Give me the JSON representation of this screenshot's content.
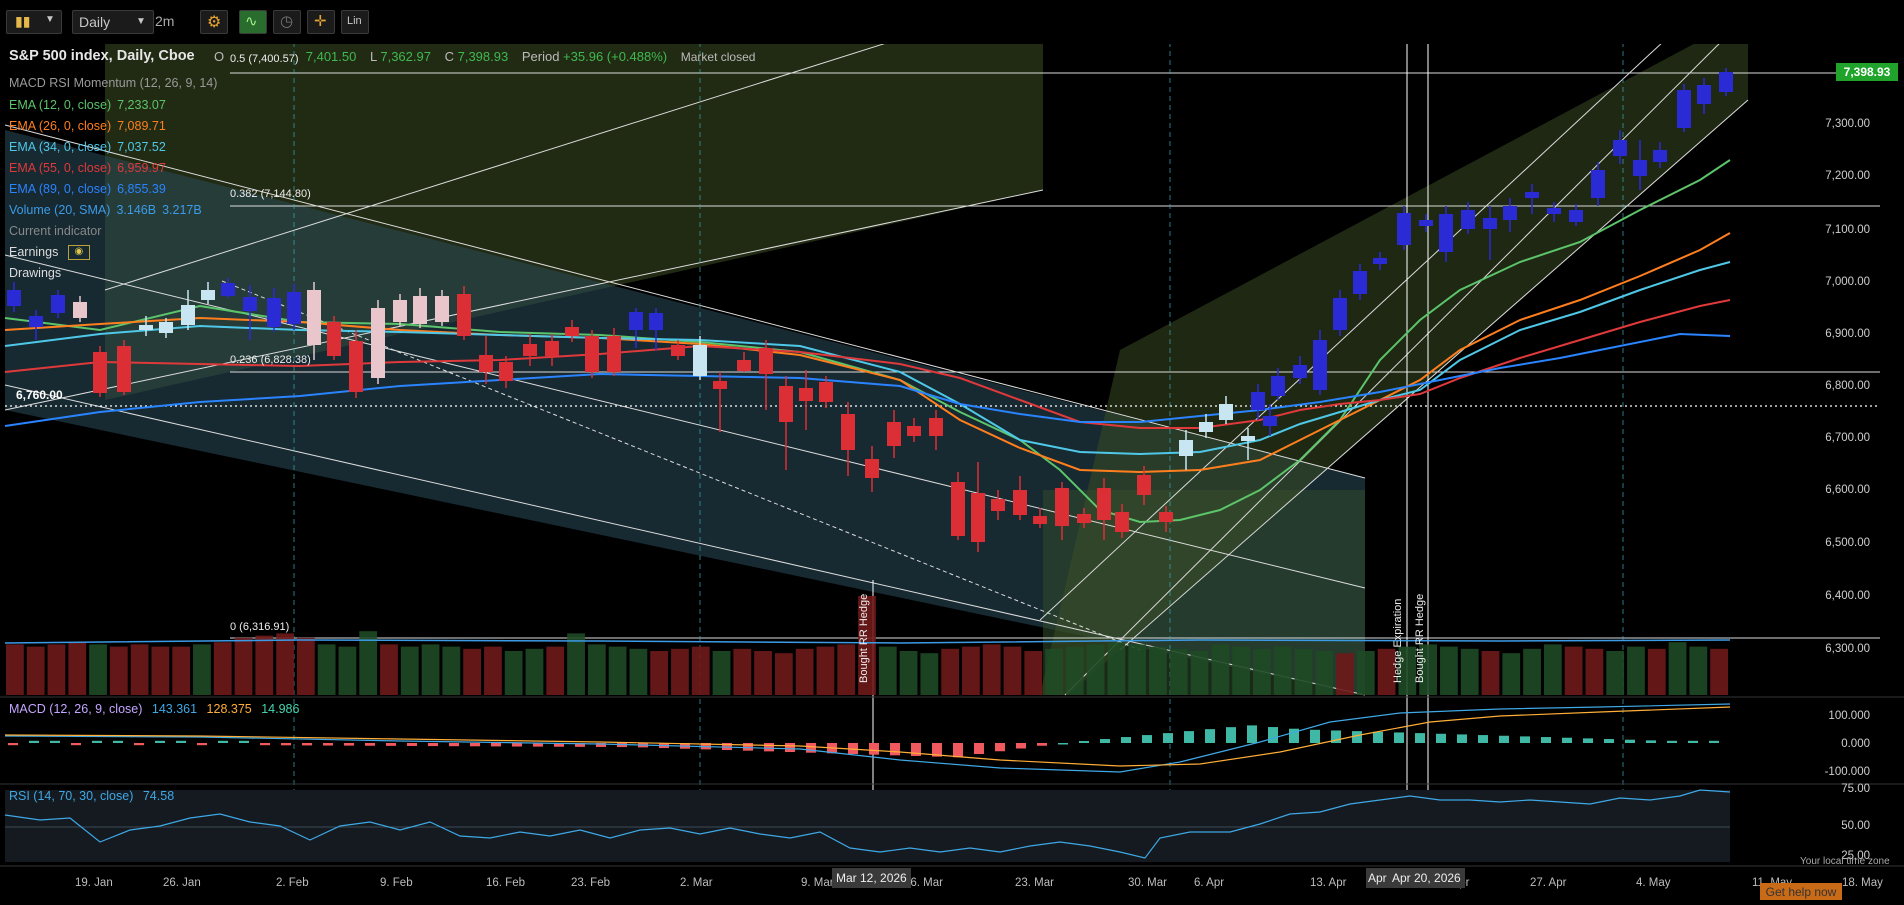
{
  "toolbar": {
    "timeframe": "Daily",
    "interval": "2m",
    "scale_label": "Lin"
  },
  "header": {
    "title": "S&P 500 index, Daily, Cboe",
    "o_label": "O",
    "h_value": "7,401.50",
    "l_label": "L",
    "l_value": "7,362.97",
    "c_label": "C",
    "c_value": "7,398.93",
    "period_label": "Period",
    "period_value": "+35.96 (+0.488%)",
    "market_status": "Market closed"
  },
  "legend": {
    "macd_rsi": "MACD RSI Momentum (12, 26, 9, 14)",
    "ema12": {
      "label": "EMA (12, 0, close)",
      "value": "7,233.07",
      "color": "#5cc46a"
    },
    "ema26": {
      "label": "EMA (26, 0, close)",
      "value": "7,089.71",
      "color": "#ff7f1f"
    },
    "ema34": {
      "label": "EMA (34, 0, close)",
      "value": "7,037.52",
      "color": "#4fc8e8"
    },
    "ema55": {
      "label": "EMA (55, 0, close)",
      "value": "6,959.97",
      "color": "#e0393b"
    },
    "ema89": {
      "label": "EMA (89, 0, close)",
      "value": "6,855.39",
      "color": "#2a84ff"
    },
    "volume": {
      "label": "Volume (20, SMA)",
      "value1": "3.146B",
      "value2": "3.217B",
      "color": "#3c9be6"
    },
    "current_indicator": "Current indicator",
    "earnings": "Earnings",
    "drawings": "Drawings"
  },
  "fib": {
    "f05": "0.5 (7,400.57)",
    "f0382": "0.382 (7,144.80)",
    "f0236": "0.236 (6,828.38)",
    "f0": "0 (6,316.91)"
  },
  "price_axis": [
    "7,300.00",
    "7,200.00",
    "7,100.00",
    "7,000.00",
    "6,900.00",
    "6,800.00",
    "6,700.00",
    "6,600.00",
    "6,500.00",
    "6,400.00",
    "6,300.00"
  ],
  "last_price": "7,398.93",
  "hline_label": "6,760.00",
  "annotations": {
    "bought_rr_hedge": "Bought RR Hedge",
    "hedge_expiration": "Hedge Expiration"
  },
  "macd": {
    "label": "MACD (12, 26, 9, close)",
    "v1": "143.361",
    "v2": "128.375",
    "v3": "14.986",
    "axis": [
      "100.000",
      "0.000",
      "-100.000"
    ]
  },
  "rsi": {
    "label": "RSI (14, 70, 30, close)",
    "value": "74.58",
    "axis": [
      "75.00",
      "50.00",
      "25.00"
    ]
  },
  "time_axis": [
    "19. Jan",
    "26. Jan",
    "2. Feb",
    "9. Feb",
    "16. Feb",
    "23. Feb",
    "2. Mar",
    "9. Mar",
    "16. Mar",
    "23. Mar",
    "30. Mar",
    "6. Apr",
    "13. Apr",
    "20. Apr",
    "27. Apr",
    "4. May",
    "11. May",
    "18. May"
  ],
  "badges": {
    "mar12": "Mar 12, 2026",
    "apr_prefix": "Apr",
    "apr20": "Apr 20, 2026"
  },
  "local_time": "Your local time zone",
  "help_button": "Get help now",
  "colors": {
    "up": "#2b2bd6",
    "down": "#dc2f35",
    "up_light": "#b9e4f5",
    "down_light": "#e8c6cc"
  }
}
